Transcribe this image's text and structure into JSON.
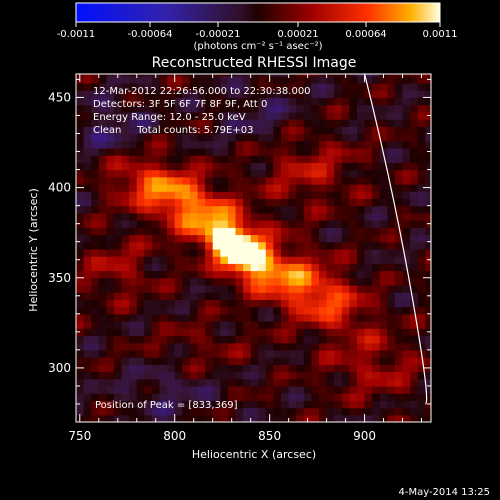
{
  "colorbar": {
    "ticks": [
      "-0.0011",
      "-0.00064",
      "-0.00021",
      "0.00021",
      "0.00064",
      "0.0011"
    ],
    "units": "(photons cm⁻² s⁻¹ asec⁻²)"
  },
  "chart_data": {
    "type": "heatmap",
    "title": "Reconstructed RHESSI Image",
    "xlabel": "Heliocentric X (arcsec)",
    "ylabel": "Heliocentric Y (arcsec)",
    "xlim": [
      748,
      935
    ],
    "ylim": [
      270,
      463
    ],
    "x_ticks": [
      750,
      800,
      850,
      900
    ],
    "y_ticks": [
      300,
      350,
      400,
      450
    ],
    "color_range": [
      -0.0011,
      0.0011
    ],
    "annotations": [
      "12-Mar-2012 22:26:56.000 to 22:30:38.000",
      "Detectors: 3F 5F 6F 7F 8F 9F, Att 0",
      "Energy Range: 12.0 - 25.0 keV",
      "Clean     Total counts: 5.79E+03"
    ],
    "peak_label": "Position of Peak = [833,369]",
    "peak": [
      833,
      369
    ],
    "limb_curve": [
      [
        900,
        463
      ],
      [
        915,
        400
      ],
      [
        925,
        340
      ],
      [
        932,
        280
      ]
    ],
    "sources": [
      {
        "x": 833,
        "y": 366,
        "sx": 12,
        "sy": 7,
        "angle": -42,
        "amp": 0.00105
      },
      {
        "x": 815,
        "y": 385,
        "sx": 30,
        "sy": 11,
        "angle": -35,
        "amp": 0.0006
      },
      {
        "x": 855,
        "y": 350,
        "sx": 25,
        "sy": 10,
        "angle": -30,
        "amp": 0.0005
      },
      {
        "x": 790,
        "y": 400,
        "sx": 22,
        "sy": 10,
        "angle": -20,
        "amp": 0.0004
      },
      {
        "x": 880,
        "y": 340,
        "sx": 20,
        "sy": 12,
        "angle": -40,
        "amp": 0.0004
      },
      {
        "x": 870,
        "y": 410,
        "sx": 18,
        "sy": 14,
        "angle": 0,
        "amp": 0.00035
      },
      {
        "x": 770,
        "y": 355,
        "sx": 14,
        "sy": 12,
        "angle": 0,
        "amp": 0.0003
      },
      {
        "x": 905,
        "y": 300,
        "sx": 18,
        "sy": 12,
        "angle": 0,
        "amp": 0.0003
      },
      {
        "x": 810,
        "y": 310,
        "sx": 20,
        "sy": 10,
        "angle": 10,
        "amp": 0.0002
      },
      {
        "x": 765,
        "y": 430,
        "sx": 14,
        "sy": 14,
        "angle": 0,
        "amp": -0.0003
      },
      {
        "x": 795,
        "y": 290,
        "sx": 16,
        "sy": 12,
        "angle": 0,
        "amp": -0.00025
      },
      {
        "x": 845,
        "y": 440,
        "sx": 16,
        "sy": 12,
        "angle": 0,
        "amp": -0.0002
      }
    ]
  },
  "timestamp": "4-May-2014 13:25"
}
